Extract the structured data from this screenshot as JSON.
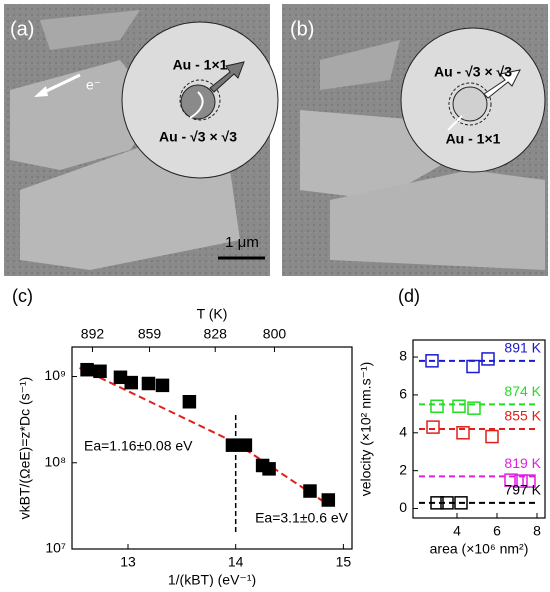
{
  "panels": {
    "a": {
      "label": "(a)",
      "electron": "e⁻",
      "top_phase": "Au - 1×1",
      "bottom_phase": "Au - √3 × √3",
      "scale_bar": "1 μm"
    },
    "b": {
      "label": "(b)",
      "top_phase": "Au - √3 × √3",
      "bottom_phase": "Au - 1×1"
    }
  },
  "chart_data": [
    {
      "type": "scatter",
      "panel_label": "(c)",
      "x_label": "1/(kBT) (eV⁻¹)",
      "x2_label": "T (K)",
      "y_label": "vkBT/(ΩeE)=z*Dc (s⁻¹)",
      "x": [
        12.62,
        12.74,
        12.93,
        13.03,
        13.19,
        13.32,
        13.57,
        13.97,
        14.09,
        14.25,
        14.31,
        14.69,
        14.86
      ],
      "values": [
        1200000000.0,
        1150000000.0,
        980000000.0,
        850000000.0,
        830000000.0,
        790000000.0,
        510000000.0,
        160000000.0,
        160000000.0,
        93000000.0,
        85000000.0,
        47000000.0,
        37000000.0
      ],
      "color": "#000000",
      "fits": [
        {
          "x": [
            12.55,
            14.0
          ],
          "values": [
            1260000000.0,
            170000000.0
          ],
          "color": "#e0201a"
        },
        {
          "x": [
            14.0,
            14.87
          ],
          "values": [
            170000000.0,
            32000000.0
          ],
          "color": "#e0201a"
        }
      ],
      "divider_x": 14.0,
      "annotations": [
        "Ea=1.16±0.08 eV",
        "Ea=3.1±0.6 eV"
      ],
      "xlim": [
        12.48,
        15.08
      ],
      "xticks": [
        13,
        14,
        15
      ],
      "x2ticks": [
        {
          "value": 12.67,
          "label": "892"
        },
        {
          "value": 13.2,
          "label": "859"
        },
        {
          "value": 13.81,
          "label": "828"
        },
        {
          "value": 14.36,
          "label": "800"
        }
      ],
      "ylim": [
        10000000.0,
        2200000000.0
      ],
      "log_y": true,
      "yticks": [
        {
          "value": 10000000.0,
          "label": "10⁷"
        },
        {
          "value": 100000000.0,
          "label": "10⁸"
        },
        {
          "value": 1000000000.0,
          "label": "10⁹"
        }
      ],
      "grid": false
    },
    {
      "type": "scatter",
      "panel_label": "(d)",
      "x_label": "area (×10⁶ nm²)",
      "y_label": "velocity (×10² nm.s⁻¹)",
      "series": [
        {
          "name": "891 K",
          "color": "#1a1ad0",
          "x": [
            2.75,
            4.8,
            5.55
          ],
          "values": [
            7.8,
            7.5,
            7.9
          ],
          "fit_level": 7.8
        },
        {
          "name": "874 K",
          "color": "#22dd22",
          "x": [
            3.0,
            4.1,
            4.85
          ],
          "values": [
            5.4,
            5.4,
            5.3
          ],
          "fit_level": 5.5
        },
        {
          "name": "855 K",
          "color": "#e0201a",
          "x": [
            2.8,
            4.3,
            5.75
          ],
          "values": [
            4.3,
            4.0,
            3.8
          ],
          "fit_level": 4.2
        },
        {
          "name": "819 K",
          "color": "#e020e0",
          "x": [
            6.7,
            7.2,
            7.6
          ],
          "values": [
            1.5,
            1.45,
            1.45
          ],
          "fit_level": 1.7
        },
        {
          "name": "797 K",
          "color": "#000000",
          "x": [
            3.0,
            3.5,
            4.2
          ],
          "values": [
            0.3,
            0.3,
            0.3
          ],
          "fit_level": 0.3
        }
      ],
      "xlim": [
        1.8,
        8.4
      ],
      "xticks": [
        4,
        6,
        8
      ],
      "ylim": [
        -0.5,
        8.9
      ],
      "yticks": [
        0,
        2,
        4,
        6,
        8
      ],
      "grid": false
    }
  ]
}
